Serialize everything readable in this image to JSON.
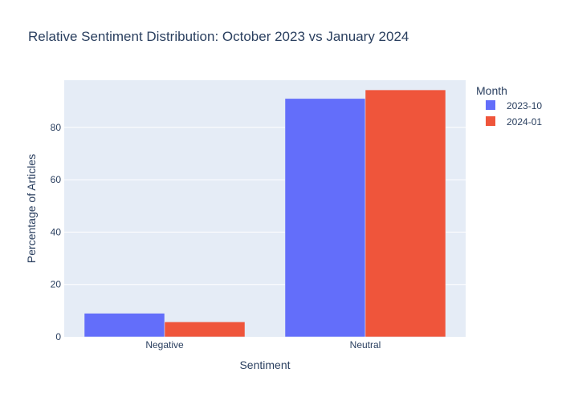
{
  "chart_data": {
    "type": "bar",
    "title": "Relative Sentiment Distribution: October 2023 vs January 2024",
    "xlabel": "Sentiment",
    "ylabel": "Percentage of Articles",
    "categories": [
      "Negative",
      "Neutral"
    ],
    "series": [
      {
        "name": "2023-10",
        "values": [
          9.0,
          91.0
        ],
        "color": "#636efa"
      },
      {
        "name": "2024-01",
        "values": [
          5.7,
          94.3
        ],
        "color": "#ef553b"
      }
    ],
    "ylim": [
      0,
      98
    ],
    "yticks": [
      0,
      20,
      40,
      60,
      80
    ],
    "grid": true,
    "legend": {
      "title": "Month",
      "position": "top-right"
    },
    "plot_background": "#e5ecf6"
  }
}
